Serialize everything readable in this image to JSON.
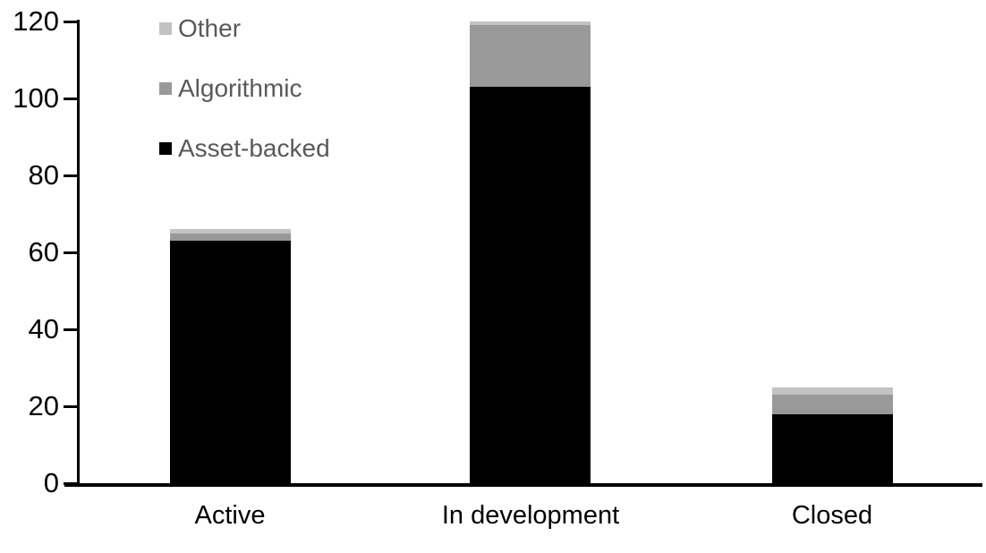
{
  "chart_data": {
    "type": "bar",
    "stacked": true,
    "title": "",
    "xlabel": "",
    "ylabel": "",
    "categories": [
      "Active",
      "In development",
      "Closed"
    ],
    "series": [
      {
        "name": "Asset-backed",
        "color": "#000000",
        "values": [
          63,
          103,
          18
        ]
      },
      {
        "name": "Algorithmic",
        "color": "#999999",
        "values": [
          2,
          16,
          5
        ]
      },
      {
        "name": "Other",
        "color": "#c3c3c3",
        "values": [
          1,
          1,
          2
        ]
      }
    ],
    "totals": [
      66,
      120,
      25
    ],
    "ylim": [
      0,
      120
    ],
    "yticks": [
      0,
      20,
      40,
      60,
      80,
      100,
      120
    ],
    "grid": false,
    "legend": {
      "position": "top-left",
      "order_top_to_bottom": [
        "Other",
        "Algorithmic",
        "Asset-backed"
      ]
    },
    "colors": {
      "axis": "#000000",
      "tick_label": "#000000",
      "category_label": "#000000",
      "legend_text": "#595959",
      "background": "#ffffff"
    }
  }
}
